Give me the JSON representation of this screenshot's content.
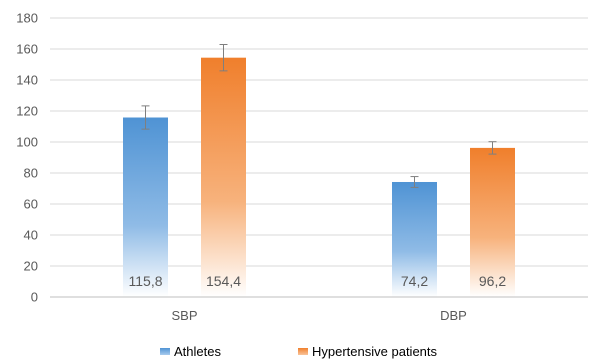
{
  "chart_data": {
    "type": "bar",
    "categories": [
      "SBP",
      "DBP"
    ],
    "series": [
      {
        "name": "Athletes",
        "values": [
          115.8,
          74.2
        ],
        "errors": [
          7.5,
          3.5
        ],
        "labels": [
          "115,8",
          "74,2"
        ],
        "color": "#5b9bd5"
      },
      {
        "name": "Hypertensive patients",
        "values": [
          154.4,
          96.2
        ],
        "errors": [
          8.5,
          4.0
        ],
        "labels": [
          "154,4",
          "96,2"
        ],
        "color": "#f28c3f"
      }
    ],
    "yticks": [
      "0",
      "20",
      "40",
      "60",
      "80",
      "100",
      "120",
      "140",
      "160",
      "180"
    ],
    "ylim": [
      0,
      180
    ],
    "grid": true,
    "legend": "bottom"
  }
}
